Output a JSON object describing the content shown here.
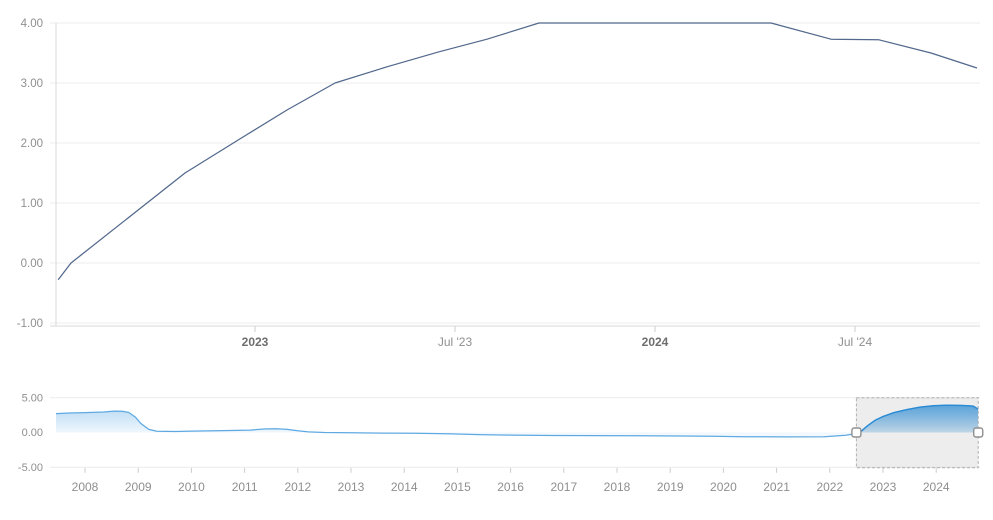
{
  "widget": {
    "description": "interest-rate line chart with range navigator",
    "background": "#ffffff"
  },
  "colors": {
    "main_line": "#52688c",
    "grid": "#ececec",
    "axis_line": "#d8d8d8",
    "tick": "#cccccc",
    "y_label": "#8f8f8f",
    "x_label_bold": "#6e6e6e",
    "x_label_normal": "#8f8f8f",
    "nav_line_base": "#5fa9e2",
    "nav_line_selected": "#2a8bd4",
    "nav_fill_base_top": "rgba(94,170,230,0.45)",
    "nav_fill_base_bottom": "rgba(94,170,230,0.04)",
    "nav_fill_selected_top": "rgba(42,139,212,0.62)",
    "nav_fill_selected_bottom": "rgba(42,139,212,0.10)",
    "brush_fill": "rgba(140,140,140,0.16)",
    "brush_border": "#b0b0b0",
    "handle_fill": "#ffffff",
    "handle_stroke": "#8f8f8f"
  },
  "chart_data": [
    {
      "name": "main",
      "type": "line",
      "title": "",
      "xlabel": "",
      "ylabel": "",
      "grid": true,
      "x_range_years": [
        2022.5,
        2024.81
      ],
      "ylim": [
        -1,
        4
      ],
      "y_ticks": [
        {
          "value": 4,
          "label": "4.00"
        },
        {
          "value": 3,
          "label": "3.00"
        },
        {
          "value": 2,
          "label": "2.00"
        },
        {
          "value": 1,
          "label": "1.00"
        },
        {
          "value": 0,
          "label": "0.00"
        },
        {
          "value": -1,
          "label": "-1.00"
        }
      ],
      "x_ticks": [
        {
          "t": 2023,
          "label": "2023",
          "bold": true
        },
        {
          "t": 2023.5,
          "label": "Jul '23",
          "bold": false
        },
        {
          "t": 2024,
          "label": "2024",
          "bold": true
        },
        {
          "t": 2024.5,
          "label": "Jul '24",
          "bold": false
        }
      ],
      "series": [
        {
          "name": "rate",
          "points": [
            [
              2022.508,
              -0.28
            ],
            [
              2022.54,
              0.0
            ],
            [
              2022.825,
              1.5
            ],
            [
              2022.97,
              2.1
            ],
            [
              2023.08,
              2.55
            ],
            [
              2023.2,
              3.0
            ],
            [
              2023.33,
              3.27
            ],
            [
              2023.46,
              3.52
            ],
            [
              2023.58,
              3.73
            ],
            [
              2023.71,
              4.0
            ],
            [
              2024.29,
              4.0
            ],
            [
              2024.44,
              3.73
            ],
            [
              2024.56,
              3.72
            ],
            [
              2024.69,
              3.5
            ],
            [
              2024.805,
              3.25
            ]
          ]
        }
      ]
    },
    {
      "name": "navigator",
      "type": "area",
      "title": "",
      "xlabel": "",
      "ylabel": "",
      "grid": true,
      "x_range_years": [
        2007.455,
        2024.79
      ],
      "ylim": [
        -5,
        5
      ],
      "y_ticks": [
        {
          "value": 5,
          "label": "5.00"
        },
        {
          "value": 0,
          "label": "0.00"
        },
        {
          "value": -5,
          "label": "-5.00"
        }
      ],
      "x_tick_years": [
        "2008",
        "2009",
        "2010",
        "2011",
        "2012",
        "2013",
        "2014",
        "2015",
        "2016",
        "2017",
        "2018",
        "2019",
        "2020",
        "2021",
        "2022",
        "2023",
        "2024"
      ],
      "selection": {
        "from": 2022.5,
        "to": 2024.79
      },
      "series": [
        {
          "name": "rate-history",
          "points": [
            [
              2007.455,
              2.72
            ],
            [
              2007.7,
              2.8
            ],
            [
              2008.0,
              2.86
            ],
            [
              2008.35,
              2.95
            ],
            [
              2008.55,
              3.08
            ],
            [
              2008.7,
              3.05
            ],
            [
              2008.82,
              2.9
            ],
            [
              2008.95,
              2.2
            ],
            [
              2009.05,
              1.3
            ],
            [
              2009.2,
              0.45
            ],
            [
              2009.35,
              0.18
            ],
            [
              2009.7,
              0.15
            ],
            [
              2010.0,
              0.2
            ],
            [
              2010.6,
              0.27
            ],
            [
              2011.1,
              0.35
            ],
            [
              2011.4,
              0.52
            ],
            [
              2011.6,
              0.55
            ],
            [
              2011.8,
              0.45
            ],
            [
              2012.0,
              0.25
            ],
            [
              2012.2,
              0.08
            ],
            [
              2012.5,
              0.0
            ],
            [
              2013.0,
              -0.05
            ],
            [
              2013.6,
              -0.08
            ],
            [
              2014.2,
              -0.12
            ],
            [
              2014.8,
              -0.18
            ],
            [
              2015.4,
              -0.3
            ],
            [
              2016.0,
              -0.38
            ],
            [
              2016.8,
              -0.43
            ],
            [
              2017.6,
              -0.45
            ],
            [
              2018.4,
              -0.47
            ],
            [
              2019.2,
              -0.5
            ],
            [
              2019.8,
              -0.55
            ],
            [
              2020.4,
              -0.6
            ],
            [
              2021.2,
              -0.63
            ],
            [
              2021.9,
              -0.6
            ],
            [
              2022.3,
              -0.4
            ],
            [
              2022.5,
              -0.15
            ],
            [
              2022.58,
              0.1
            ],
            [
              2022.7,
              0.9
            ],
            [
              2022.85,
              1.75
            ],
            [
              2023.0,
              2.3
            ],
            [
              2023.2,
              2.85
            ],
            [
              2023.45,
              3.3
            ],
            [
              2023.7,
              3.65
            ],
            [
              2023.95,
              3.85
            ],
            [
              2024.2,
              3.93
            ],
            [
              2024.45,
              3.9
            ],
            [
              2024.6,
              3.85
            ],
            [
              2024.7,
              3.78
            ],
            [
              2024.79,
              3.35
            ]
          ]
        }
      ]
    }
  ]
}
